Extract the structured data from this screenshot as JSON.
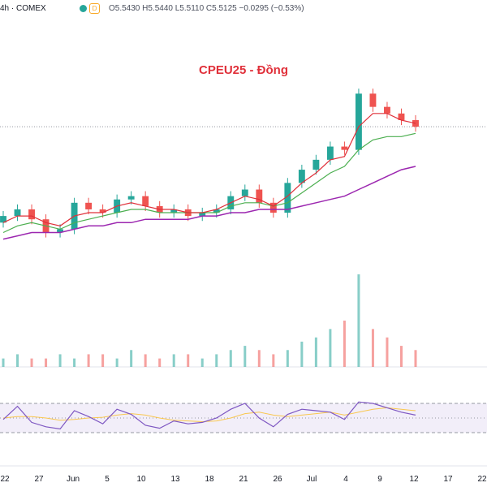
{
  "header": {
    "symbol": "4h · COMEX",
    "ohlc": "O5.5430 H5.5440 L5.5110 C5.5125 −0.0295 (−0.53%)",
    "d_badge": "D"
  },
  "chart_data": {
    "type": "candlestick",
    "title": "CPEU25 - Đồng",
    "x_labels": [
      "22",
      "27",
      "Jun",
      "5",
      "10",
      "13",
      "18",
      "21",
      "26",
      "Jul",
      "4",
      "9",
      "12",
      "17",
      "22"
    ],
    "reference_price_line": true,
    "price_series": [
      5.35,
      5.37,
      5.34,
      5.3,
      5.31,
      5.39,
      5.37,
      5.36,
      5.4,
      5.41,
      5.38,
      5.36,
      5.37,
      5.35,
      5.36,
      5.37,
      5.41,
      5.43,
      5.39,
      5.36,
      5.45,
      5.49,
      5.52,
      5.56,
      5.55,
      5.72,
      5.68,
      5.66,
      5.64,
      5.62
    ],
    "ema_fast": [
      5.33,
      5.35,
      5.35,
      5.33,
      5.32,
      5.35,
      5.36,
      5.36,
      5.38,
      5.39,
      5.38,
      5.37,
      5.37,
      5.36,
      5.36,
      5.37,
      5.39,
      5.41,
      5.4,
      5.38,
      5.41,
      5.45,
      5.48,
      5.52,
      5.53,
      5.62,
      5.66,
      5.66,
      5.64,
      5.63
    ],
    "ema_mid": [
      5.3,
      5.32,
      5.33,
      5.32,
      5.31,
      5.33,
      5.34,
      5.35,
      5.36,
      5.37,
      5.37,
      5.36,
      5.36,
      5.36,
      5.36,
      5.36,
      5.38,
      5.39,
      5.39,
      5.38,
      5.39,
      5.42,
      5.45,
      5.48,
      5.5,
      5.55,
      5.58,
      5.59,
      5.59,
      5.6
    ],
    "ema_slow": [
      5.28,
      5.29,
      5.3,
      5.3,
      5.3,
      5.31,
      5.32,
      5.32,
      5.33,
      5.33,
      5.34,
      5.34,
      5.34,
      5.34,
      5.35,
      5.35,
      5.36,
      5.36,
      5.37,
      5.37,
      5.37,
      5.38,
      5.39,
      5.4,
      5.41,
      5.43,
      5.45,
      5.47,
      5.49,
      5.5
    ],
    "volume": [
      2,
      3,
      2,
      2,
      3,
      2,
      3,
      3,
      2,
      4,
      3,
      2,
      3,
      3,
      2,
      3,
      4,
      5,
      4,
      3,
      4,
      6,
      7,
      9,
      11,
      22,
      9,
      7,
      5,
      4
    ],
    "rsi": [
      48,
      66,
      44,
      38,
      35,
      60,
      52,
      42,
      62,
      55,
      40,
      36,
      46,
      42,
      44,
      50,
      62,
      70,
      50,
      38,
      55,
      62,
      60,
      58,
      48,
      72,
      70,
      64,
      58,
      54
    ],
    "rsi_ma": [
      50,
      52,
      52,
      50,
      47,
      48,
      50,
      51,
      54,
      56,
      54,
      50,
      47,
      46,
      45,
      46,
      50,
      56,
      58,
      54,
      52,
      54,
      56,
      58,
      54,
      58,
      62,
      64,
      62,
      60
    ],
    "rsi_bands": [
      70,
      50,
      30
    ],
    "colors": {
      "up": "#26a69a",
      "down": "#ef5350",
      "ema_fast": "#e0303a",
      "ema_mid": "#4caf50",
      "ema_slow": "#9c27b0",
      "rsi": "#7e57c2",
      "rsi_ma": "#f9c74f",
      "rsi_band_fill": "#ede7f6"
    }
  }
}
